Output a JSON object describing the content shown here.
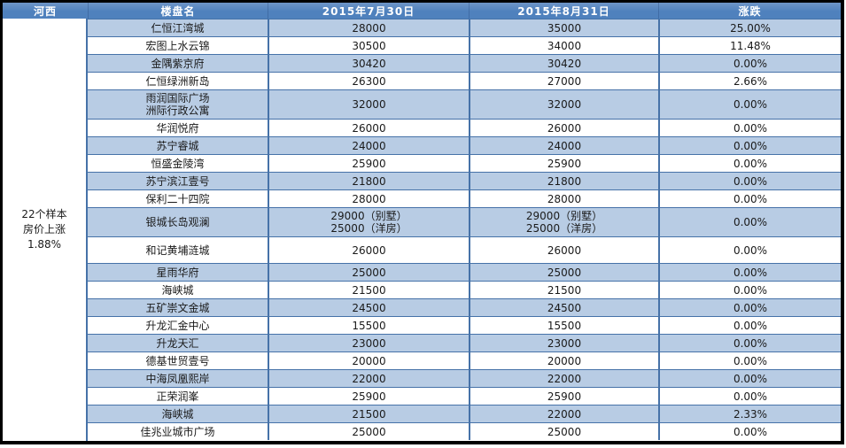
{
  "theme": {
    "header_bg": "#4f81bd",
    "header_bg_top": "#6e95c8",
    "header_text": "#ffffff",
    "alt_row": "#b8cce4",
    "row_bg": "#ffffff",
    "grid": "#4672a8",
    "frame": "#000000",
    "text": "#1a1a1a"
  },
  "table": {
    "columns": [
      "河西",
      "楼盘名",
      "2015年7月30日",
      "2015年8月31日",
      "涨跌"
    ],
    "summary": [
      "22个样本",
      "房价上涨",
      "1.88%"
    ],
    "rows": [
      {
        "name": "仁恒江湾城",
        "jul": "28000",
        "aug": "35000",
        "change": "25.00%"
      },
      {
        "name": "宏图上水云锦",
        "jul": "30500",
        "aug": "34000",
        "change": "11.48%"
      },
      {
        "name": "金隅紫京府",
        "jul": "30420",
        "aug": "30420",
        "change": "0.00%"
      },
      {
        "name": "仁恒绿洲新岛",
        "jul": "26300",
        "aug": "27000",
        "change": "2.66%"
      },
      {
        "name": "雨润国际广场\n洲际行政公寓",
        "jul": "32000",
        "aug": "32000",
        "change": "0.00%",
        "h": 33
      },
      {
        "name": "华润悦府",
        "jul": "26000",
        "aug": "26000",
        "change": "0.00%"
      },
      {
        "name": "苏宁睿城",
        "jul": "24000",
        "aug": "24000",
        "change": "0.00%"
      },
      {
        "name": "恒盛金陵湾",
        "jul": "25900",
        "aug": "25900",
        "change": "0.00%"
      },
      {
        "name": "苏宁滨江壹号",
        "jul": "21800",
        "aug": "21800",
        "change": "0.00%"
      },
      {
        "name": "保利二十四院",
        "jul": "28000",
        "aug": "28000",
        "change": "0.00%"
      },
      {
        "name": "银城长岛观澜",
        "jul": "29000（别墅）\n25000（洋房）",
        "aug": "29000（别墅）\n25000（洋房）",
        "change": "0.00%",
        "h": 33
      },
      {
        "name": "和记黄埔涟城",
        "jul": "26000",
        "aug": "26000",
        "change": "0.00%",
        "h": 30
      },
      {
        "name": "星雨华府",
        "jul": "25000",
        "aug": "25000",
        "change": "0.00%"
      },
      {
        "name": "海峡城",
        "jul": "21500",
        "aug": "21500",
        "change": "0.00%"
      },
      {
        "name": "五矿崇文金城",
        "jul": "24500",
        "aug": "24500",
        "change": "0.00%"
      },
      {
        "name": "升龙汇金中心",
        "jul": "15500",
        "aug": "15500",
        "change": "0.00%"
      },
      {
        "name": "升龙天汇",
        "jul": "23000",
        "aug": "23000",
        "change": "0.00%"
      },
      {
        "name": "德基世贸壹号",
        "jul": "20000",
        "aug": "20000",
        "change": "0.00%"
      },
      {
        "name": "中海凤凰熙岸",
        "jul": "22000",
        "aug": "22000",
        "change": "0.00%"
      },
      {
        "name": "正荣润峯",
        "jul": "25900",
        "aug": "25900",
        "change": "0.00%"
      },
      {
        "name": "海峡城",
        "jul": "21500",
        "aug": "22000",
        "change": "2.33%"
      },
      {
        "name": "佳兆业城市广场",
        "jul": "25000",
        "aug": "25000",
        "change": "0.00%"
      }
    ]
  }
}
